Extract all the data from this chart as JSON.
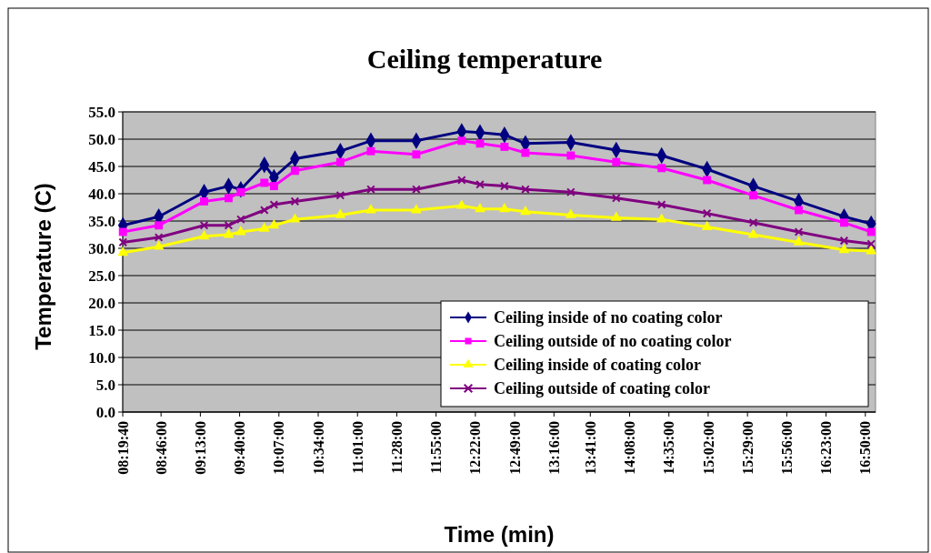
{
  "chart_data": {
    "type": "line",
    "title": "Ceiling temperature",
    "xlabel": "Time (min)",
    "ylabel": "Temperature (C)",
    "xlim": [
      8.3278,
      16.95
    ],
    "xticks": [
      {
        "value": 8.3278,
        "label": "08:19:40"
      },
      {
        "value": 8.7667,
        "label": "08:46:00"
      },
      {
        "value": 9.2167,
        "label": "09:13:00"
      },
      {
        "value": 9.6667,
        "label": "09:40:00"
      },
      {
        "value": 10.1167,
        "label": "10:07:00"
      },
      {
        "value": 10.5667,
        "label": "10:34:00"
      },
      {
        "value": 11.0167,
        "label": "11:01:00"
      },
      {
        "value": 11.4667,
        "label": "11:28:00"
      },
      {
        "value": 11.9167,
        "label": "11:55:00"
      },
      {
        "value": 12.3667,
        "label": "12:22:00"
      },
      {
        "value": 12.8167,
        "label": "12:49:00"
      },
      {
        "value": 13.2667,
        "label": "13:16:00"
      },
      {
        "value": 13.6833,
        "label": "13:41:00"
      },
      {
        "value": 14.1333,
        "label": "14:08:00"
      },
      {
        "value": 14.5833,
        "label": "14:35:00"
      },
      {
        "value": 15.0333,
        "label": "15:02:00"
      },
      {
        "value": 15.4833,
        "label": "15:29:00"
      },
      {
        "value": 15.9333,
        "label": "15:56:00"
      },
      {
        "value": 16.3833,
        "label": "16:23:00"
      },
      {
        "value": 16.8333,
        "label": "16:50:00"
      }
    ],
    "ylim": [
      0,
      55
    ],
    "yticks": [
      {
        "value": 0,
        "label": "0.0"
      },
      {
        "value": 5,
        "label": "5.0"
      },
      {
        "value": 10,
        "label": "10.0"
      },
      {
        "value": 15,
        "label": "15.0"
      },
      {
        "value": 20,
        "label": "20.0"
      },
      {
        "value": 25,
        "label": "25.0"
      },
      {
        "value": 30,
        "label": "30.0"
      },
      {
        "value": 35,
        "label": "35.0"
      },
      {
        "value": 40,
        "label": "40.0"
      },
      {
        "value": 45,
        "label": "45.0"
      },
      {
        "value": 50,
        "label": "50.0"
      },
      {
        "value": 55,
        "label": "55.0"
      }
    ],
    "x": [
      8.33,
      8.74,
      9.26,
      9.54,
      9.68,
      9.95,
      10.06,
      10.3,
      10.82,
      11.17,
      11.69,
      12.21,
      12.42,
      12.7,
      12.94,
      13.46,
      13.98,
      14.5,
      15.02,
      15.55,
      16.07,
      16.59,
      16.9
    ],
    "grid": "y",
    "legend": "bottom right",
    "series": [
      {
        "name": "Ceiling inside of no coating color",
        "color": "#000080",
        "marker": "diamond",
        "values": [
          34.2,
          35.8,
          40.3,
          41.4,
          40.8,
          45.3,
          43,
          46.4,
          47.8,
          49.7,
          49.7,
          51.4,
          51.2,
          50.8,
          49.2,
          49.4,
          48,
          47,
          44.5,
          41.4,
          38.6,
          35.8,
          34.5
        ]
      },
      {
        "name": "Ceiling outside of no coating color",
        "color": "#ff00ff",
        "marker": "square",
        "values": [
          33,
          34.2,
          38.6,
          39.2,
          40.3,
          42,
          41.4,
          44.2,
          45.8,
          47.8,
          47.2,
          49.7,
          49.2,
          48.6,
          47.5,
          47,
          45.8,
          44.7,
          42.5,
          39.7,
          37,
          34.7,
          33
        ]
      },
      {
        "name": "Ceiling inside of coating color",
        "color": "#ffff00",
        "marker": "triangle",
        "values": [
          29.2,
          30.3,
          32.2,
          32.5,
          33,
          33.6,
          34.2,
          35.3,
          36.1,
          37,
          37,
          37.8,
          37.2,
          37.2,
          36.7,
          36.1,
          35.6,
          35.3,
          33.9,
          32.5,
          31.1,
          29.7,
          29.5
        ]
      },
      {
        "name": "Ceiling outside of coating color",
        "color": "#800080",
        "marker": "cross",
        "values": [
          31.1,
          32,
          34.2,
          34.2,
          35.3,
          37,
          38,
          38.6,
          39.7,
          40.8,
          40.8,
          42.5,
          41.7,
          41.4,
          40.8,
          40.3,
          39.2,
          38,
          36.4,
          34.7,
          33,
          31.4,
          30.8
        ]
      }
    ]
  }
}
